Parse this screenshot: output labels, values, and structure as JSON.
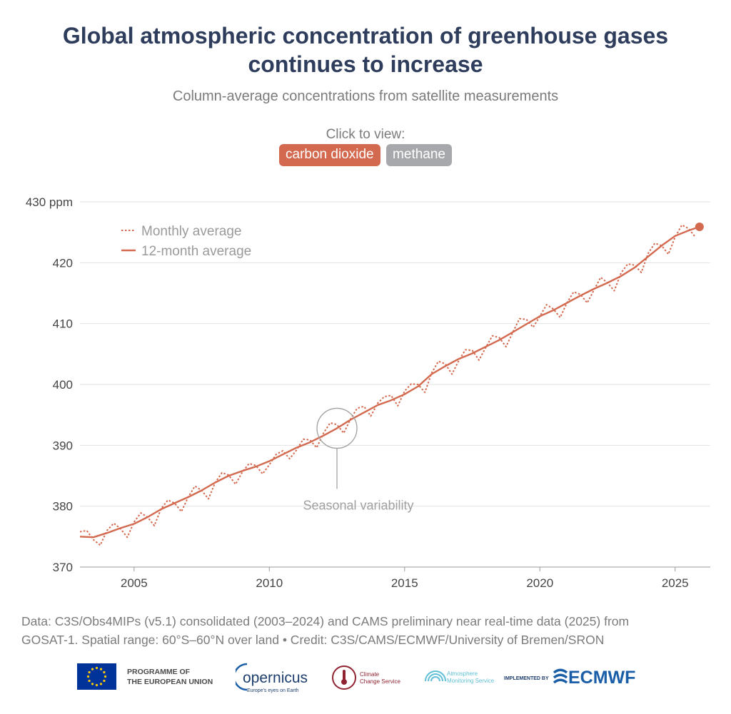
{
  "header": {
    "title_line1": "Global atmospheric concentration of greenhouse gases",
    "title_line2": "continues to increase",
    "subtitle": "Column-average concentrations from satellite measurements",
    "click_label": "Click to view:",
    "toggles": [
      {
        "label": "carbon dioxide",
        "active": true
      },
      {
        "label": "methane",
        "active": false
      }
    ]
  },
  "colors": {
    "series": "#d36a50",
    "title": "#2f3d5c",
    "inactive_toggle": "#a6a8ab",
    "annotation": "#a0a0a0",
    "grid": "#e2e2e2"
  },
  "chart_data": {
    "type": "line",
    "title": "",
    "xlabel": "",
    "ylabel": "",
    "xlim": [
      2003.0,
      2026.3
    ],
    "ylim": [
      370,
      430
    ],
    "y_ticks": [
      370,
      380,
      390,
      400,
      410,
      420,
      430
    ],
    "y_tick_labels": [
      "370",
      "380",
      "390",
      "400",
      "410",
      "420",
      "430 ppm"
    ],
    "x_ticks": [
      2005,
      2010,
      2015,
      2020,
      2025
    ],
    "x_tick_labels": [
      "2005",
      "2010",
      "2015",
      "2020",
      "2025"
    ],
    "grid": "horizontal",
    "legend_position": "top-left",
    "legend": [
      {
        "label": "Monthly average",
        "style": "dashed"
      },
      {
        "label": "12-month average",
        "style": "solid"
      }
    ],
    "annotation": {
      "text": "Seasonal variability",
      "x": 2012.5,
      "y": 392.8
    },
    "series": [
      {
        "name": "Monthly average",
        "style": "dashed",
        "x": [
          2003.0,
          2003.25,
          2003.5,
          2003.75,
          2004.0,
          2004.25,
          2004.5,
          2004.75,
          2005.0,
          2005.25,
          2005.5,
          2005.75,
          2006.0,
          2006.25,
          2006.5,
          2006.75,
          2007.0,
          2007.25,
          2007.5,
          2007.75,
          2008.0,
          2008.25,
          2008.5,
          2008.75,
          2009.0,
          2009.25,
          2009.5,
          2009.75,
          2010.0,
          2010.25,
          2010.5,
          2010.75,
          2011.0,
          2011.25,
          2011.5,
          2011.75,
          2012.0,
          2012.25,
          2012.5,
          2012.75,
          2013.0,
          2013.25,
          2013.5,
          2013.75,
          2014.0,
          2014.25,
          2014.5,
          2014.75,
          2015.0,
          2015.25,
          2015.5,
          2015.75,
          2016.0,
          2016.25,
          2016.5,
          2016.75,
          2017.0,
          2017.25,
          2017.5,
          2017.75,
          2018.0,
          2018.25,
          2018.5,
          2018.75,
          2019.0,
          2019.25,
          2019.5,
          2019.75,
          2020.0,
          2020.25,
          2020.5,
          2020.75,
          2021.0,
          2021.25,
          2021.5,
          2021.75,
          2022.0,
          2022.25,
          2022.5,
          2022.75,
          2023.0,
          2023.25,
          2023.5,
          2023.75,
          2024.0,
          2024.25,
          2024.5,
          2024.75,
          2025.0,
          2025.25,
          2025.5,
          2025.75
        ],
        "y": [
          375.8,
          376.0,
          374.5,
          373.6,
          376.0,
          377.2,
          376.3,
          374.9,
          377.4,
          378.9,
          378.2,
          376.8,
          379.6,
          381.0,
          380.5,
          379.1,
          381.5,
          383.3,
          382.6,
          381.2,
          383.9,
          385.5,
          385.1,
          383.6,
          385.6,
          387.0,
          386.7,
          385.3,
          386.8,
          388.5,
          389.1,
          387.8,
          389.2,
          391.0,
          390.9,
          389.6,
          392.0,
          393.7,
          393.4,
          392.0,
          394.3,
          396.1,
          396.4,
          394.8,
          396.9,
          398.0,
          398.2,
          396.5,
          398.9,
          400.1,
          400.0,
          398.7,
          401.9,
          403.8,
          403.4,
          401.7,
          403.9,
          405.7,
          405.6,
          404.0,
          406.1,
          408.0,
          407.7,
          406.2,
          408.6,
          410.8,
          410.7,
          409.4,
          411.2,
          413.1,
          412.4,
          411.0,
          413.4,
          415.2,
          414.8,
          413.4,
          415.5,
          417.6,
          416.7,
          415.4,
          418.3,
          419.8,
          419.6,
          418.4,
          421.5,
          423.2,
          422.8,
          421.4,
          424.2,
          426.2,
          425.6,
          424.2
        ]
      },
      {
        "name": "12-month average",
        "style": "solid",
        "x": [
          2003.0,
          2003.5,
          2004.0,
          2004.5,
          2005.0,
          2005.5,
          2006.0,
          2006.5,
          2007.0,
          2007.5,
          2008.0,
          2008.5,
          2009.0,
          2009.5,
          2010.0,
          2010.5,
          2011.0,
          2011.5,
          2012.0,
          2012.5,
          2013.0,
          2013.5,
          2014.0,
          2014.5,
          2015.0,
          2015.5,
          2016.0,
          2016.5,
          2017.0,
          2017.5,
          2018.0,
          2018.5,
          2019.0,
          2019.5,
          2020.0,
          2020.5,
          2021.0,
          2021.5,
          2022.0,
          2022.5,
          2023.0,
          2023.5,
          2024.0,
          2024.5,
          2025.0,
          2025.5,
          2025.9
        ],
        "y": [
          375.0,
          374.9,
          375.6,
          376.4,
          377.1,
          378.2,
          379.5,
          380.5,
          381.5,
          382.6,
          383.9,
          385.0,
          385.8,
          386.5,
          387.4,
          388.5,
          389.6,
          390.5,
          391.6,
          392.8,
          394.2,
          395.4,
          396.6,
          397.4,
          398.4,
          399.7,
          401.7,
          403.0,
          404.2,
          405.1,
          406.2,
          407.3,
          408.6,
          409.9,
          411.2,
          412.2,
          413.4,
          414.6,
          415.7,
          416.7,
          417.8,
          419.2,
          421.0,
          422.8,
          424.4,
          425.3,
          425.9
        ]
      }
    ],
    "last_point": {
      "x": 2025.9,
      "y": 425.9
    }
  },
  "footer": {
    "source_line1": "Data: C3S/Obs4MIPs (v5.1) consolidated (2003–2024) and CAMS preliminary near real-time data (2025) from",
    "source_line2": "GOSAT-1. Spatial range: 60°S–60°N over land • Credit: C3S/CAMS/ECMWF/University of Bremen/SRON",
    "logos": {
      "eu_line1": "PROGRAMME OF",
      "eu_line2": "THE EUROPEAN UNION",
      "copernicus": "opernicus",
      "copernicus_tag": "Europe's eyes on Earth",
      "c3s_line1": "Climate",
      "c3s_line2": "Change Service",
      "cams_line1": "Atmosphere",
      "cams_line2": "Monitoring Service",
      "implemented_by": "IMPLEMENTED BY",
      "ecmwf": "ECMWF"
    }
  }
}
